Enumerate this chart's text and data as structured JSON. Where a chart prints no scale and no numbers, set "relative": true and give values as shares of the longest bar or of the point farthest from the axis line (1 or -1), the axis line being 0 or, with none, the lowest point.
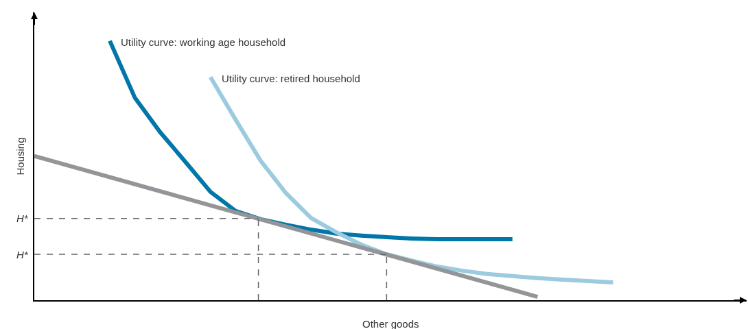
{
  "chart_data": {
    "type": "line",
    "relative": true,
    "xlabel": "Other goods",
    "ylabel": "Housing",
    "grid": false,
    "legend": false,
    "marker": "none",
    "line_style": "solid",
    "categories": [
      null,
      null,
      null,
      null,
      null,
      null,
      null,
      null,
      null,
      null,
      null,
      null,
      null,
      null,
      null,
      null,
      null,
      null,
      null,
      null,
      null,
      null,
      null,
      null
    ],
    "series": [
      {
        "name": "Utility curve: working age household",
        "color": "#0077a8",
        "values": [
          null,
          null,
          null,
          1.0,
          0.78,
          0.648,
          0.534,
          0.418,
          0.344,
          0.312,
          0.291,
          0.272,
          0.257,
          0.249,
          0.243,
          0.238,
          0.235,
          0.235,
          0.235,
          0.235,
          null,
          null,
          null,
          null
        ]
      },
      {
        "name": "Utility curve: retired household",
        "color": "#9ccadf",
        "values": [
          null,
          null,
          null,
          null,
          null,
          null,
          null,
          0.86,
          0.696,
          0.537,
          0.413,
          0.317,
          0.262,
          0.214,
          0.177,
          0.153,
          0.13,
          0.114,
          0.101,
          0.093,
          0.085,
          0.079,
          0.074,
          0.069
        ]
      },
      {
        "color": "#939598",
        "values": [
          0.556,
          null,
          null,
          null,
          null,
          null,
          null,
          null,
          null,
          null,
          null,
          null,
          null,
          null,
          null,
          null,
          null,
          null,
          null,
          null,
          0.013,
          null,
          null,
          null
        ]
      }
    ],
    "ref_lines": [
      {
        "axis": "y",
        "value": 0.315,
        "label": "H*",
        "color": "#666666",
        "line_style": "dashed"
      },
      {
        "axis": "y",
        "value": 0.177,
        "label": "H*",
        "color": "#666666",
        "line_style": "dashed"
      }
    ]
  }
}
